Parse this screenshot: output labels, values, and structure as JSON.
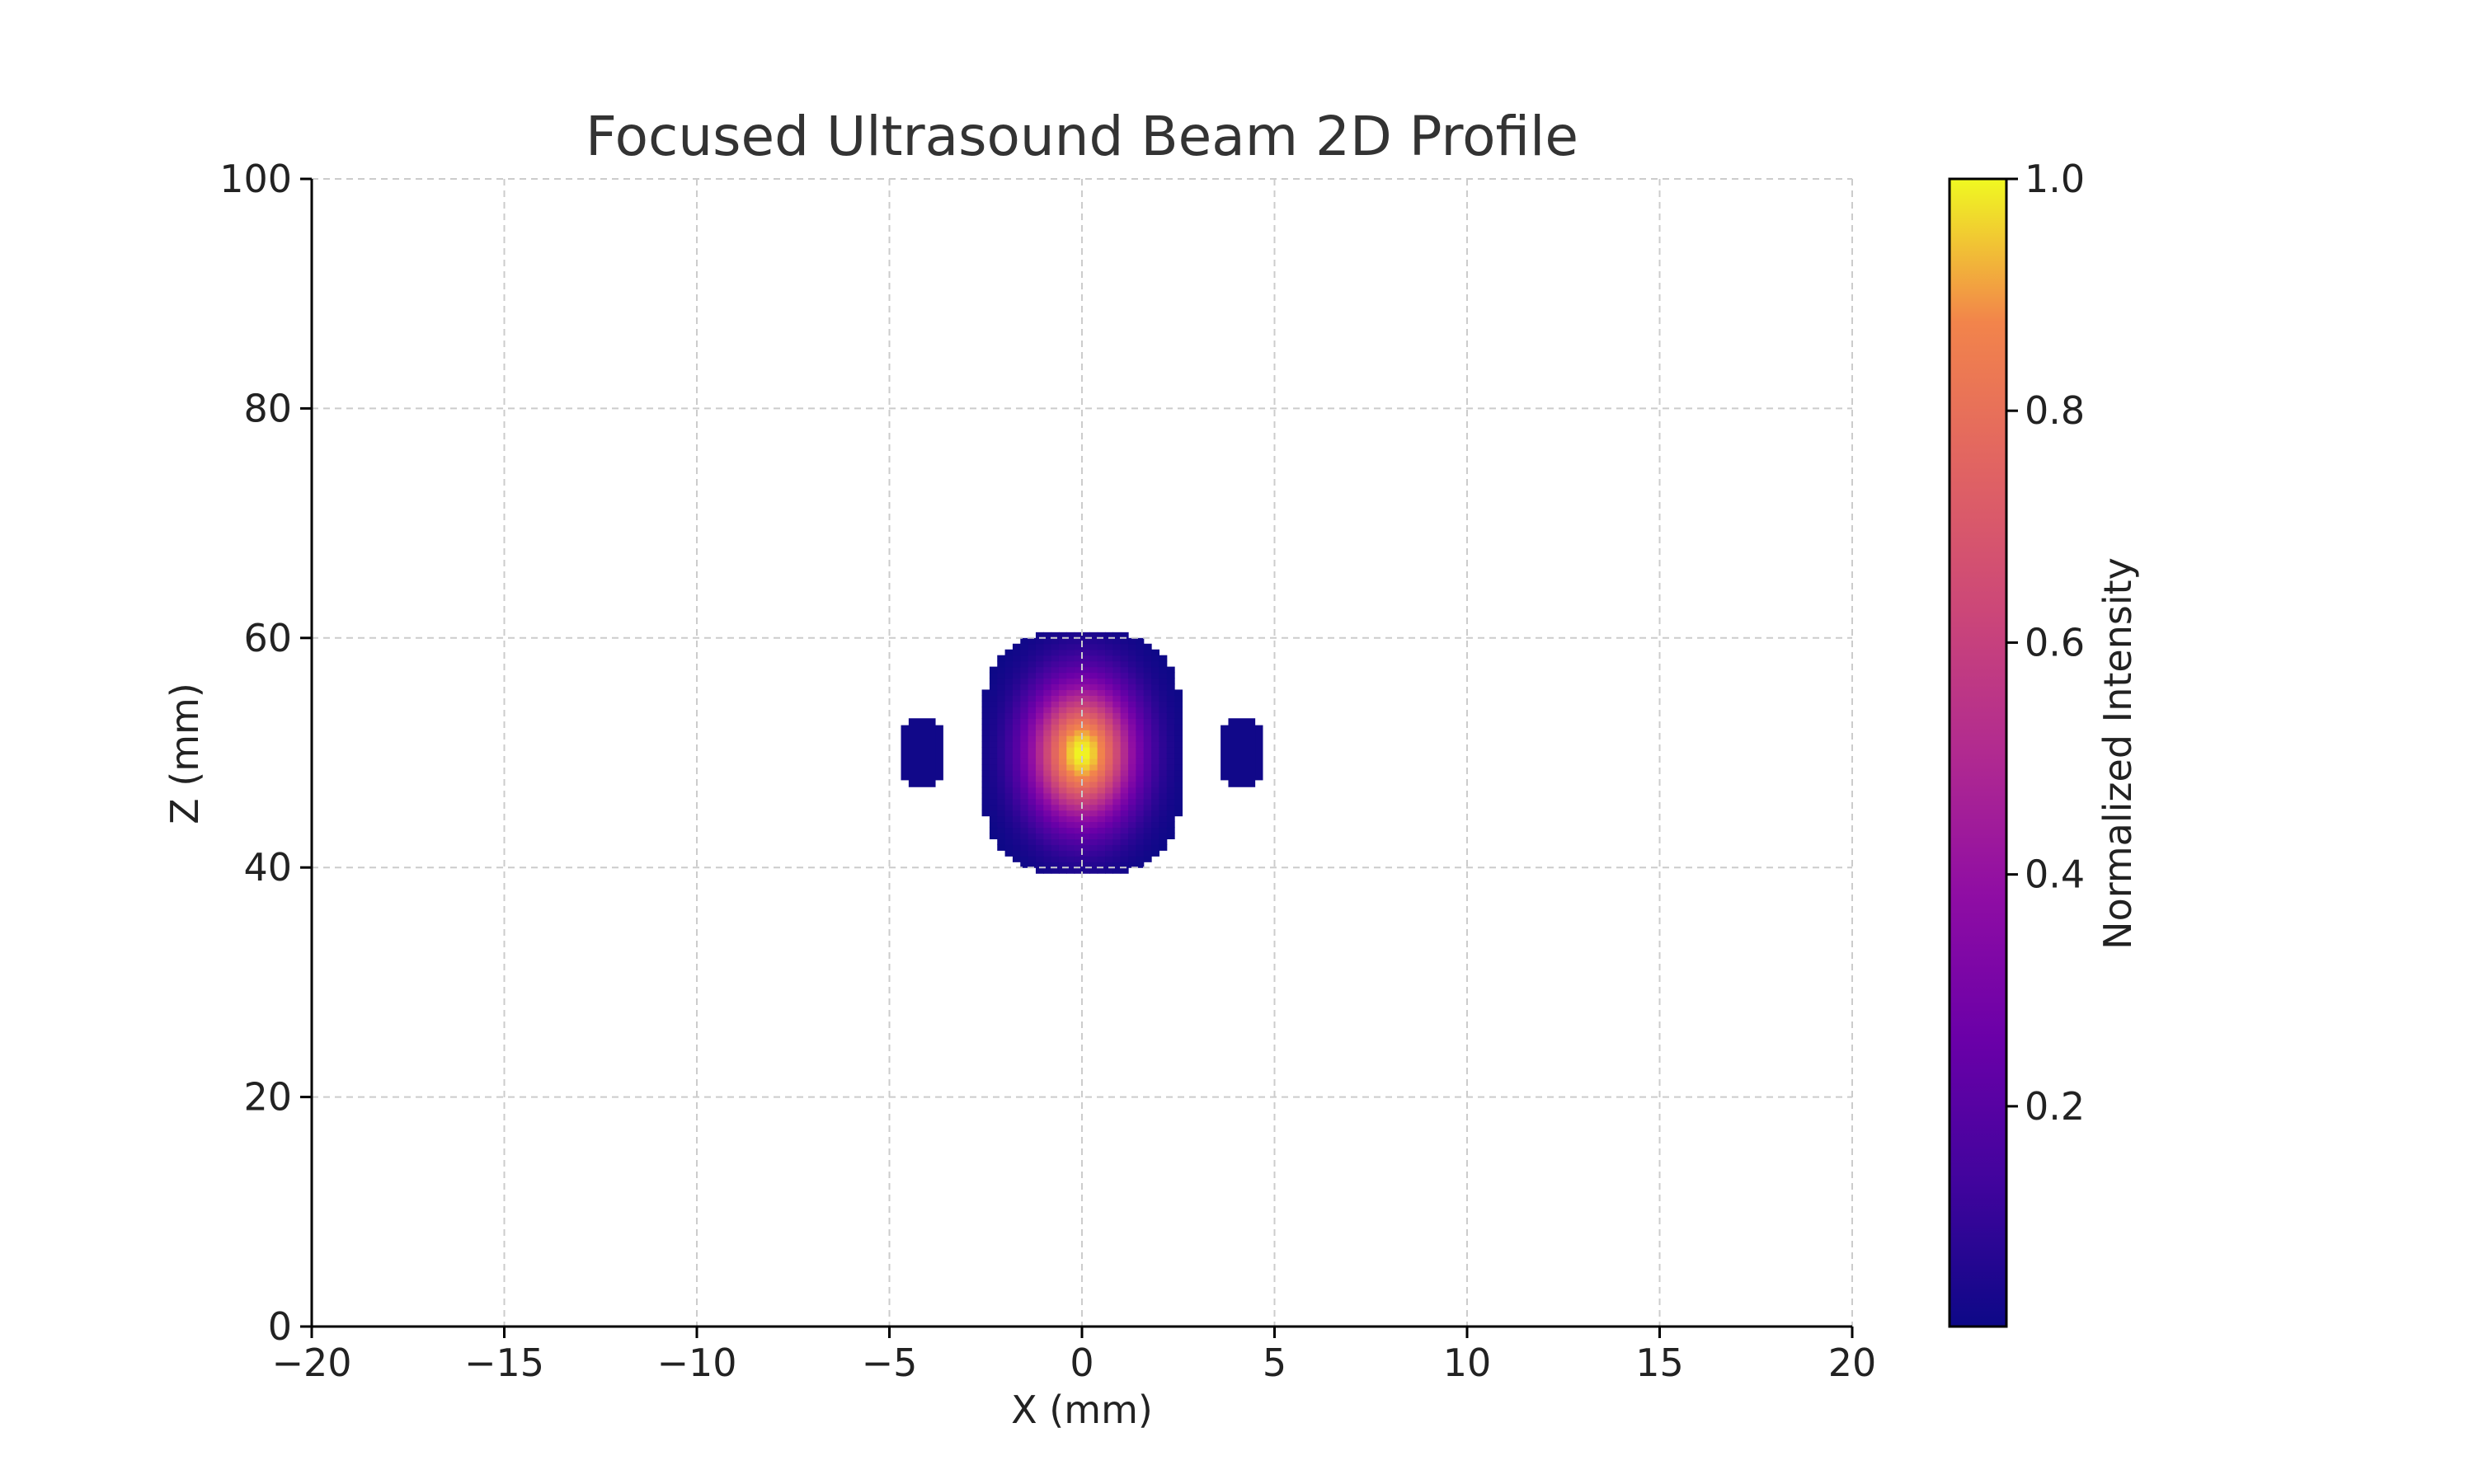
{
  "chart_data": {
    "type": "heatmap",
    "title": "Focused Ultrasound Beam 2D Profile",
    "xlabel": "X (mm)",
    "ylabel": "Z (mm)",
    "xlim": [
      -20,
      20
    ],
    "ylim": [
      0,
      100
    ],
    "x_ticks": [
      -20,
      -15,
      -10,
      -5,
      0,
      5,
      10,
      15,
      20
    ],
    "x_tick_labels": [
      "−20",
      "−15",
      "−10",
      "−5",
      "0",
      "5",
      "10",
      "15",
      "20"
    ],
    "y_ticks": [
      0,
      20,
      40,
      60,
      80,
      100
    ],
    "y_tick_labels": [
      "0",
      "20",
      "40",
      "60",
      "80",
      "100"
    ],
    "grid": true,
    "colormap": "plasma",
    "colorbar": {
      "label": "Normalized Intensity",
      "range": [
        0.01,
        1.0
      ],
      "ticks": [
        0.2,
        0.4,
        0.6,
        0.8,
        1.0
      ],
      "tick_labels": [
        "0.2",
        "0.4",
        "0.6",
        "0.8",
        "1.0"
      ]
    },
    "focus": {
      "x": 0,
      "z": 50,
      "peak": 1.0
    },
    "main_lobe": {
      "x_range": [
        -2.6,
        2.6
      ],
      "z_range": [
        39.5,
        60.5
      ]
    },
    "side_lobes": [
      {
        "x_range": [
          -4.7,
          -3.6
        ],
        "z_range": [
          47,
          53
        ],
        "value": 0.02
      },
      {
        "x_range": [
          3.6,
          4.7
        ],
        "z_range": [
          47,
          53
        ],
        "value": 0.02
      }
    ]
  }
}
